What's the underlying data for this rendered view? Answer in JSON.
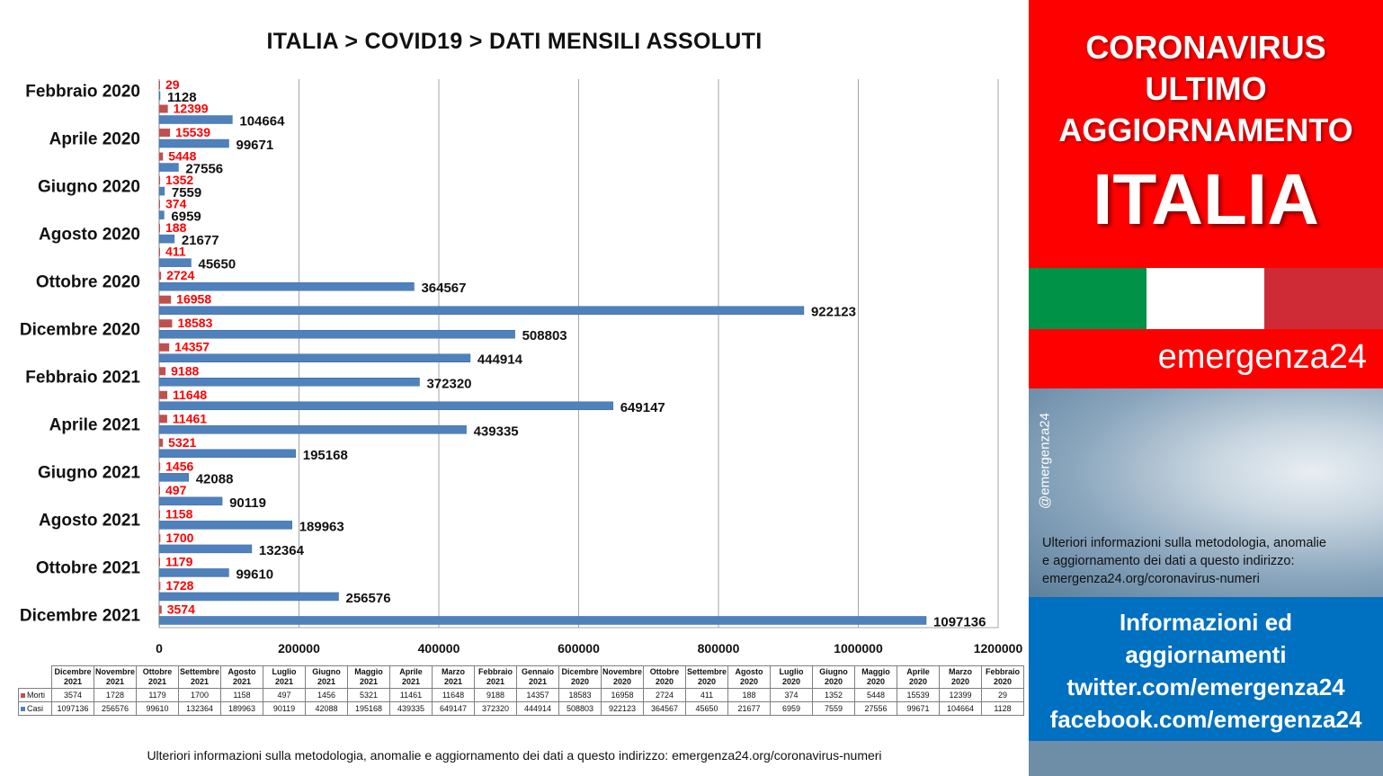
{
  "title": "ITALIA >  COVID19 > DATI MENSILI  ASSOLUTI",
  "chart_data": {
    "type": "bar",
    "orientation": "horizontal",
    "categories": [
      "Dicembre 2021",
      "Novembre 2021",
      "Ottobre 2021",
      "Settembre 2021",
      "Agosto 2021",
      "Luglio 2021",
      "Giugno 2021",
      "Maggio 2021",
      "Aprile 2021",
      "Marzo 2021",
      "Febbraio 2021",
      "Gennaio 2021",
      "Dicembre 2020",
      "Novembre 2020",
      "Ottobre 2020",
      "Settembre 2020",
      "Agosto 2020",
      "Luglio 2020",
      "Giugno 2020",
      "Maggio 2020",
      "Aprile 2020",
      "Marzo 2020",
      "Febbraio 2020"
    ],
    "table_headers": [
      [
        "Dicembre",
        "2021"
      ],
      [
        "Novembre",
        "2021"
      ],
      [
        "Ottobre",
        "2021"
      ],
      [
        "Settembre",
        "2021"
      ],
      [
        "Agosto",
        "2021"
      ],
      [
        "Luglio",
        "2021"
      ],
      [
        "Giugno",
        "2021"
      ],
      [
        "Maggio",
        "2021"
      ],
      [
        "Aprile",
        "2021"
      ],
      [
        "Marzo",
        "2021"
      ],
      [
        "Febbraio",
        "2021"
      ],
      [
        "Gennaio",
        "2021"
      ],
      [
        "Dicembre",
        "2020"
      ],
      [
        "Novembre",
        "2020"
      ],
      [
        "Ottobre",
        "2020"
      ],
      [
        "Settembre",
        "2020"
      ],
      [
        "Agosto",
        "2020"
      ],
      [
        "Luglio",
        "2020"
      ],
      [
        "Giugno",
        "2020"
      ],
      [
        "Maggio",
        "2020"
      ],
      [
        "Aprile",
        "2020"
      ],
      [
        "Marzo",
        "2020"
      ],
      [
        "Febbraio",
        "2020"
      ]
    ],
    "axis_category_labels": [
      "Febbraio 2020",
      "Aprile 2020",
      "Giugno 2020",
      "Agosto 2020",
      "Ottobre 2020",
      "Dicembre 2020",
      "Febbraio 2021",
      "Aprile 2021",
      "Giugno 2021",
      "Agosto 2021",
      "Ottobre 2021",
      "Dicembre 2021"
    ],
    "series": [
      {
        "name": "Morti",
        "color": "#c0504d",
        "values": [
          3574,
          1728,
          1179,
          1700,
          1158,
          497,
          1456,
          5321,
          11461,
          11648,
          9188,
          14357,
          18583,
          16958,
          2724,
          411,
          188,
          374,
          1352,
          5448,
          15539,
          12399,
          29
        ]
      },
      {
        "name": "Casi",
        "color": "#4f81bd",
        "values": [
          1097136,
          256576,
          99610,
          132364,
          189963,
          90119,
          42088,
          195168,
          439335,
          649147,
          372320,
          444914,
          508803,
          922123,
          364567,
          45650,
          21677,
          6959,
          7559,
          27556,
          99671,
          104664,
          1128
        ]
      }
    ],
    "xlim": [
      0,
      1200000
    ],
    "xticks": [
      "0",
      "200000",
      "400000",
      "600000",
      "800000",
      "1000000",
      "1200000"
    ],
    "grid": true
  },
  "footnote": "Ulteriori informazioni sulla metodologia, anomalie e aggiornamento dei dati a questo indirizzo: emergenza24.org/coronavirus-numeri",
  "panel": {
    "title_lines": [
      "CORONAVIRUS",
      "ULTIMO",
      "AGGIORNAMENTO"
    ],
    "country": "ITALIA",
    "flag_colors": [
      "#009246",
      "#ffffff",
      "#ce2b37"
    ],
    "brand": "emergenza24",
    "handle": "@emergenza24",
    "note_lines": [
      "Ulteriori informazioni sulla metodologia, anomalie",
      "e aggiornamento dei dati a questo indirizzo:",
      "emergenza24.org/coronavirus-numeri"
    ],
    "info_lines": [
      "Informazioni ed",
      "aggiornamenti",
      "twitter.com/emergenza24",
      "facebook.com/emergenza24"
    ]
  }
}
